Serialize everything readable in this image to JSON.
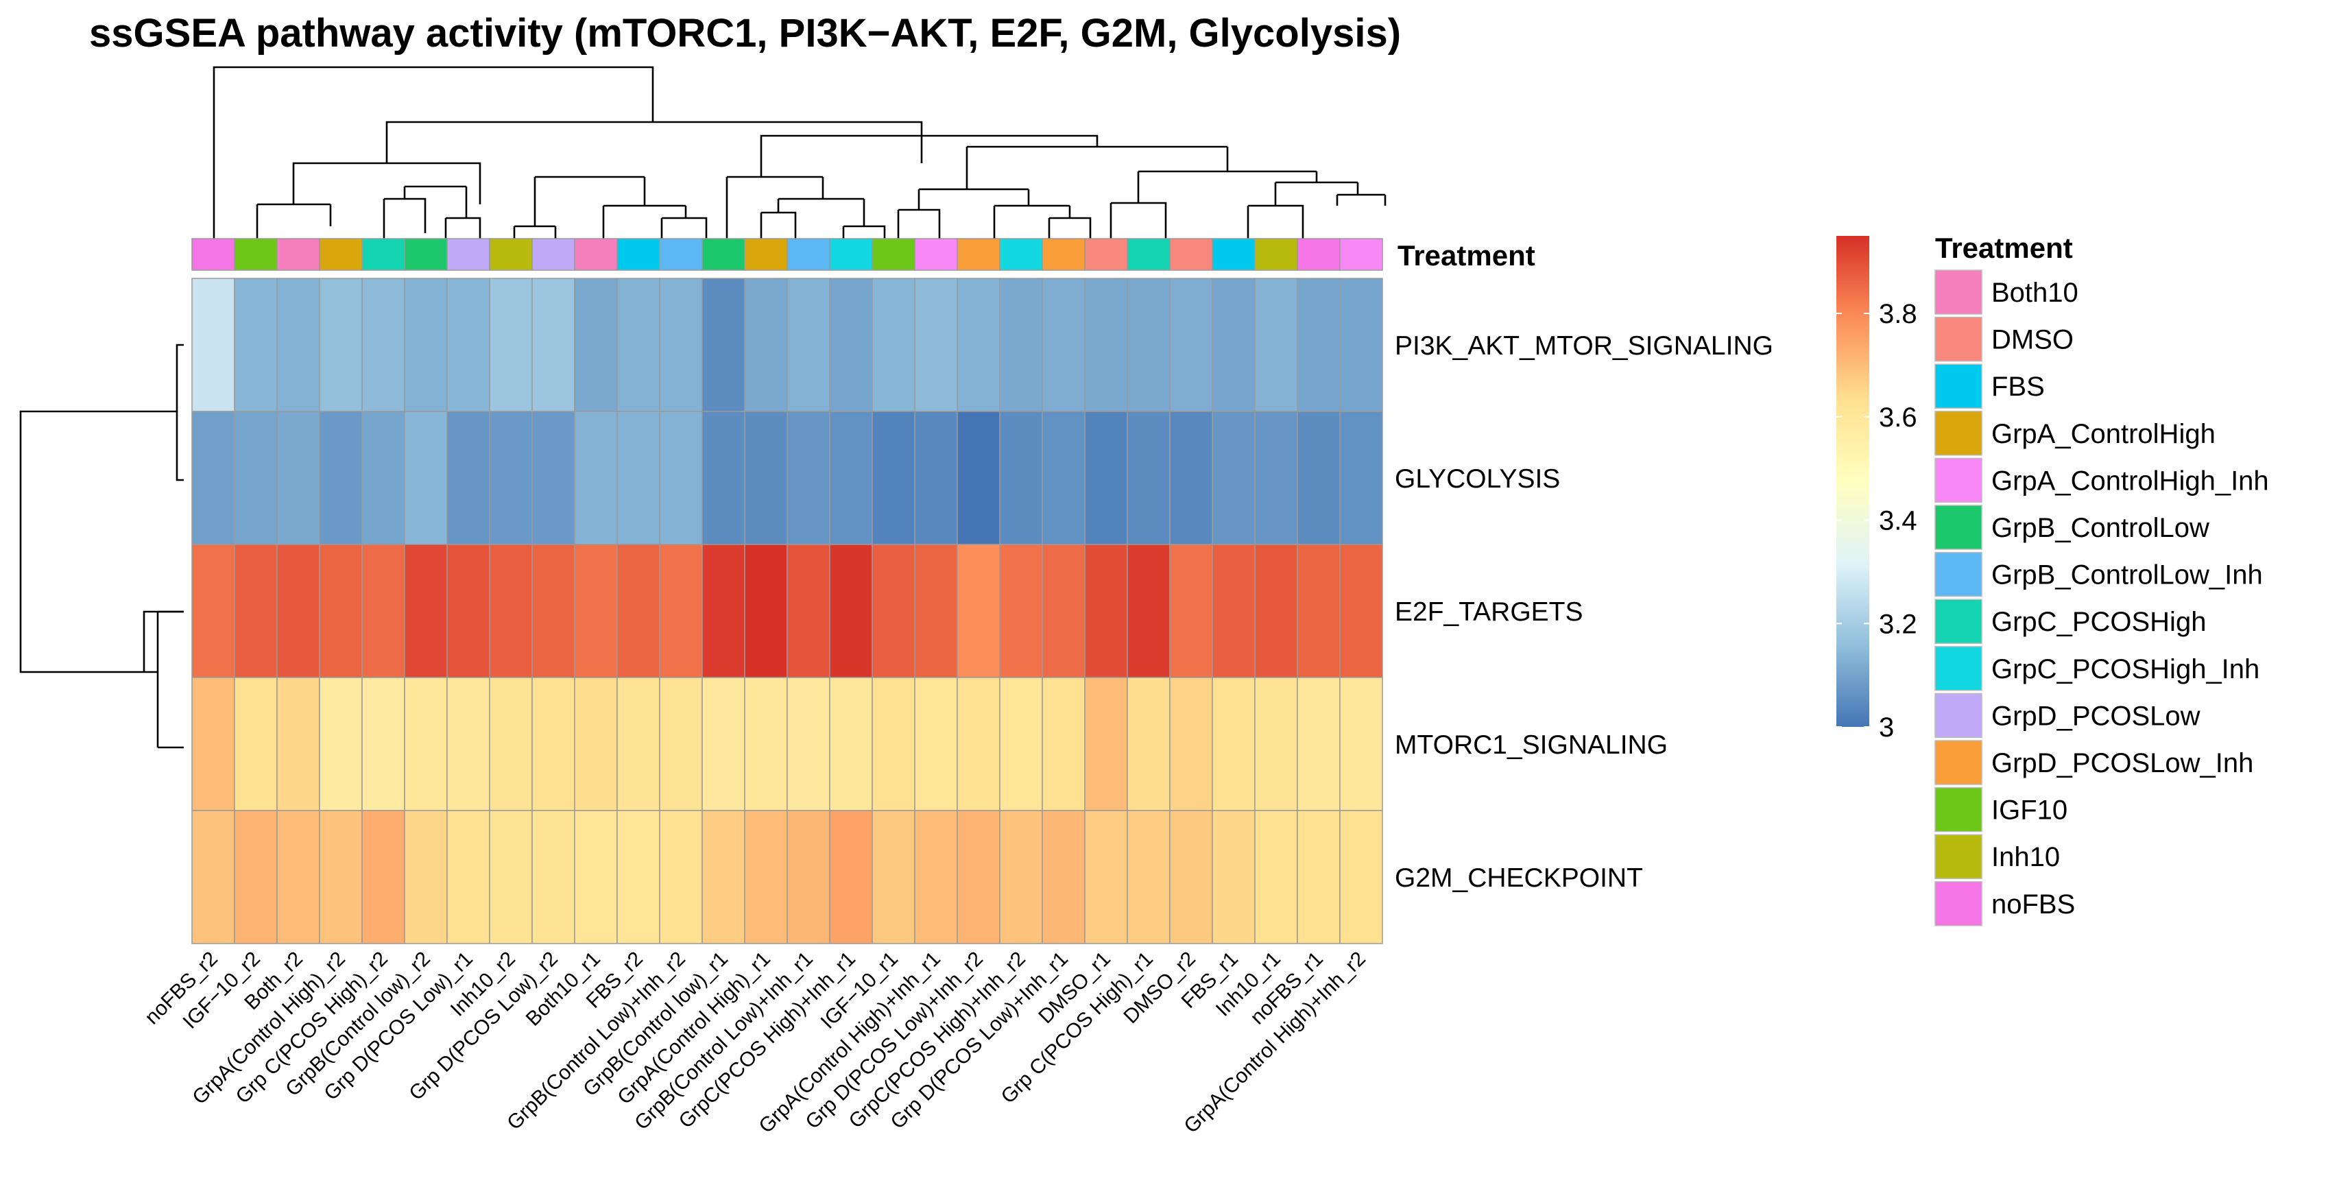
{
  "chart_data": {
    "type": "heatmap",
    "title": "ssGSEA pathway activity (mTORC1, PI3K−AKT, E2F, G2M, Glycolysis)",
    "rows": [
      "PI3K_AKT_MTOR_SIGNALING",
      "GLYCOLYSIS",
      "E2F_TARGETS",
      "MTORC1_SIGNALING",
      "G2M_CHECKPOINT"
    ],
    "columns": [
      "noFBS_r2",
      "IGF−10_r2",
      "Both_r2",
      "GrpA(Control High)_r2",
      "Grp C(PCOS High)_r2",
      "GrpB(Control low)_r2",
      "Grp D(PCOS Low)_r1",
      "Inh10_r2",
      "Grp D(PCOS Low)_r2",
      "Both10_r1",
      "FBS_r2",
      "GrpB(Control Low)+Inh_r2",
      "GrpB(Control low)_r1",
      "GrpA(Control High)_r1",
      "GrpB(Control Low)+Inh_r1",
      "GrpC(PCOS High)+Inh_r1",
      "IGF−10_r1",
      "GrpA(Control High)+Inh_r1",
      "Grp D(PCOS Low)+Inh_r2",
      "GrpC(PCOS High)+Inh_r2",
      "Grp D(PCOS Low)+Inh_r1",
      "DMSO_r1",
      "Grp C(PCOS High)_r1",
      "DMSO_r2",
      "FBS_r1",
      "Inh10_r1",
      "noFBS_r1",
      "GrpA(Control High)+Inh_r2"
    ],
    "values": [
      [
        3.27,
        3.14,
        3.13,
        3.16,
        3.15,
        3.13,
        3.14,
        3.18,
        3.18,
        3.11,
        3.13,
        3.13,
        3.05,
        3.11,
        3.13,
        3.1,
        3.14,
        3.15,
        3.13,
        3.11,
        3.12,
        3.11,
        3.11,
        3.12,
        3.1,
        3.13,
        3.1,
        3.1
      ],
      [
        3.09,
        3.1,
        3.11,
        3.08,
        3.1,
        3.14,
        3.07,
        3.08,
        3.08,
        3.13,
        3.13,
        3.13,
        3.05,
        3.05,
        3.07,
        3.06,
        3.03,
        3.04,
        2.99,
        3.05,
        3.06,
        3.03,
        3.05,
        3.04,
        3.07,
        3.07,
        3.05,
        3.06
      ],
      [
        3.84,
        3.87,
        3.88,
        3.86,
        3.85,
        3.91,
        3.89,
        3.87,
        3.86,
        3.84,
        3.86,
        3.84,
        3.93,
        3.95,
        3.89,
        3.94,
        3.87,
        3.86,
        3.79,
        3.84,
        3.85,
        3.9,
        3.93,
        3.84,
        3.87,
        3.88,
        3.86,
        3.86
      ],
      [
        3.7,
        3.63,
        3.65,
        3.58,
        3.58,
        3.6,
        3.6,
        3.62,
        3.63,
        3.64,
        3.62,
        3.62,
        3.59,
        3.6,
        3.59,
        3.6,
        3.63,
        3.61,
        3.63,
        3.61,
        3.63,
        3.7,
        3.64,
        3.66,
        3.63,
        3.62,
        3.6,
        3.6
      ],
      [
        3.69,
        3.72,
        3.7,
        3.69,
        3.73,
        3.65,
        3.63,
        3.62,
        3.62,
        3.61,
        3.61,
        3.63,
        3.67,
        3.7,
        3.71,
        3.75,
        3.68,
        3.7,
        3.72,
        3.69,
        3.71,
        3.67,
        3.67,
        3.68,
        3.65,
        3.63,
        3.63,
        3.63
      ]
    ],
    "annotation": {
      "name": "Treatment",
      "column_groups": [
        "noFBS",
        "IGF10",
        "Both10",
        "GrpA_ControlHigh",
        "GrpC_PCOSHigh",
        "GrpB_ControlLow",
        "GrpD_PCOSLow",
        "Inh10",
        "GrpD_PCOSLow",
        "Both10",
        "FBS",
        "GrpB_ControlLow_Inh",
        "GrpB_ControlLow",
        "GrpA_ControlHigh",
        "GrpB_ControlLow_Inh",
        "GrpC_PCOSHigh_Inh",
        "IGF10",
        "GrpA_ControlHigh_Inh",
        "GrpD_PCOSLow_Inh",
        "GrpC_PCOSHigh_Inh",
        "GrpD_PCOSLow_Inh",
        "DMSO",
        "GrpC_PCOSHigh",
        "DMSO",
        "FBS",
        "Inh10",
        "noFBS",
        "GrpA_ControlHigh_Inh"
      ],
      "legend": [
        {
          "label": "Both10",
          "color": "#F47FBC"
        },
        {
          "label": "DMSO",
          "color": "#F8877D"
        },
        {
          "label": "FBS",
          "color": "#00C9EE"
        },
        {
          "label": "GrpA_ControlHigh",
          "color": "#D9A60B"
        },
        {
          "label": "GrpA_ControlHigh_Inh",
          "color": "#F788F5"
        },
        {
          "label": "GrpB_ControlLow",
          "color": "#1CC76B"
        },
        {
          "label": "GrpB_ControlLow_Inh",
          "color": "#5DB7F5"
        },
        {
          "label": "GrpC_PCOSHigh",
          "color": "#13D3B0"
        },
        {
          "label": "GrpC_PCOSHigh_Inh",
          "color": "#13D8E2"
        },
        {
          "label": "GrpD_PCOSLow",
          "color": "#C0AAF8"
        },
        {
          "label": "GrpD_PCOSLow_Inh",
          "color": "#FA9E3A"
        },
        {
          "label": "IGF10",
          "color": "#6CC718"
        },
        {
          "label": "Inh10",
          "color": "#B9BA0E"
        },
        {
          "label": "noFBS",
          "color": "#F575E6"
        }
      ]
    },
    "colorscale": {
      "min": 3.0,
      "max": 3.95,
      "ticks": [
        "3",
        "3.2",
        "3.4",
        "3.6",
        "3.8"
      ],
      "tick_values": [
        3.0,
        3.2,
        3.4,
        3.6,
        3.8
      ],
      "colors": [
        "#4575B4",
        "#91BFDB",
        "#E0F3F8",
        "#FFFFBF",
        "#FEE090",
        "#FC8D59",
        "#D73027"
      ]
    },
    "row_dendrogram": {
      "clusters": [
        [
          "PI3K_AKT_MTOR_SIGNALING",
          "GLYCOLYSIS"
        ],
        [
          [
            "MTORC1_SIGNALING",
            "G2M_CHECKPOINT"
          ],
          "E2F_TARGETS"
        ]
      ]
    },
    "column_dendrogram": "hierarchical clustering shown above columns"
  }
}
